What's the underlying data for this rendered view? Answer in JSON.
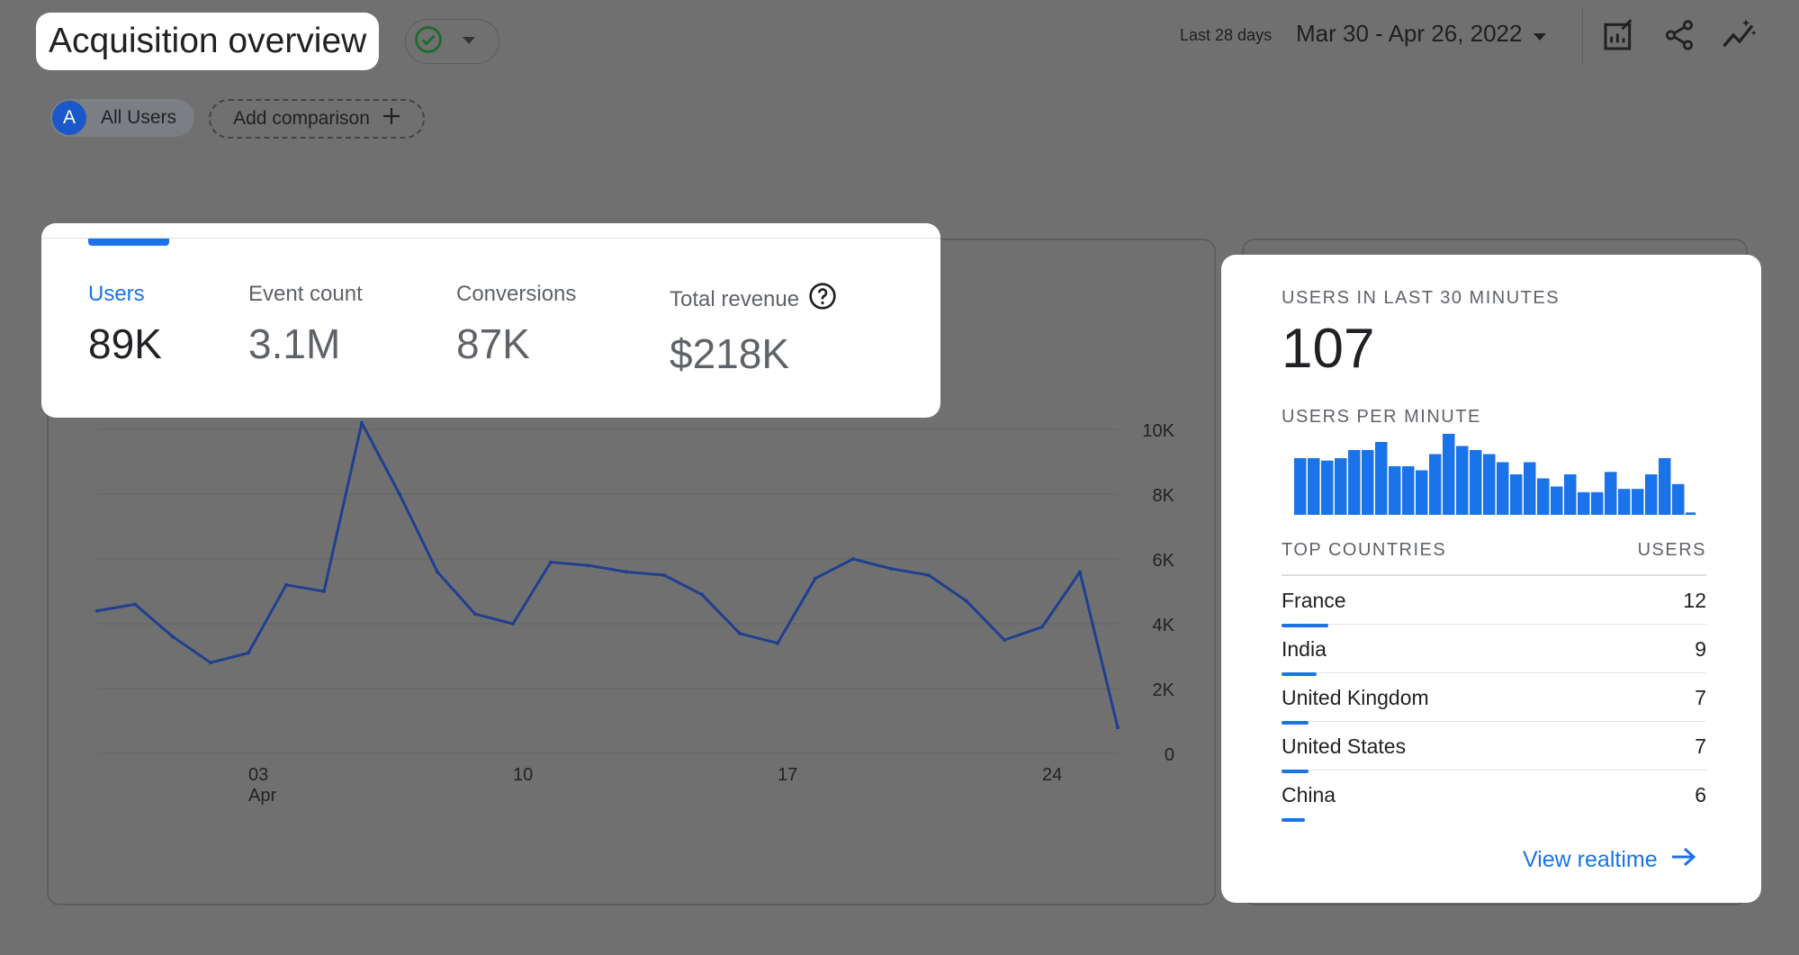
{
  "header": {
    "title": "Acquisition overview",
    "date_range_label": "Last 28 days",
    "date_range": "Mar 30 - Apr 26, 2022",
    "icons": [
      "check-circle-icon",
      "chevron-down-icon",
      "customize-report-icon",
      "share-icon",
      "insights-icon"
    ]
  },
  "comparisons": {
    "segment_avatar": "A",
    "segment_label": "All Users",
    "add_label": "Add comparison"
  },
  "metrics": [
    {
      "label": "Users",
      "value": "89K",
      "active": true
    },
    {
      "label": "Event count",
      "value": "3.1M"
    },
    {
      "label": "Conversions",
      "value": "87K"
    },
    {
      "label": "Total revenue",
      "value": "$218K",
      "help_icon": "help-circle-icon"
    }
  ],
  "chart_data": {
    "type": "line",
    "series": [
      {
        "values": [
          4400,
          4600,
          3600,
          2800,
          3100,
          5200,
          5000,
          10200,
          8000,
          5600,
          4300,
          4000,
          5900,
          5800,
          5600,
          5500,
          4900,
          3700,
          3400,
          5400,
          6000,
          5700,
          5500,
          4700,
          3500,
          3900,
          5600,
          800
        ]
      }
    ],
    "x": [
      "Mar 30",
      "Mar 31",
      "Apr 1",
      "Apr 2",
      "Apr 3",
      "Apr 4",
      "Apr 5",
      "Apr 6",
      "Apr 7",
      "Apr 8",
      "Apr 9",
      "Apr 10",
      "Apr 11",
      "Apr 12",
      "Apr 13",
      "Apr 14",
      "Apr 15",
      "Apr 16",
      "Apr 17",
      "Apr 18",
      "Apr 19",
      "Apr 20",
      "Apr 21",
      "Apr 22",
      "Apr 23",
      "Apr 24",
      "Apr 25",
      "Apr 26"
    ],
    "x_tick_labels": [
      {
        "at": "Apr 3",
        "label": "03",
        "sublabel": "Apr"
      },
      {
        "at": "Apr 10",
        "label": "10"
      },
      {
        "at": "Apr 17",
        "label": "17"
      },
      {
        "at": "Apr 24",
        "label": "24"
      }
    ],
    "y_ticks": [
      0,
      2000,
      4000,
      6000,
      8000,
      10000
    ],
    "y_tick_labels": [
      "0",
      "2K",
      "4K",
      "6K",
      "8K",
      "10K"
    ],
    "ylim": [
      0,
      10000
    ],
    "grid": true,
    "color": "#1f3f8f"
  },
  "realtime": {
    "users_heading": "USERS IN LAST 30 MINUTES",
    "users_count": "107",
    "per_minute_heading": "USERS PER MINUTE",
    "per_minute_values": [
      7,
      7,
      6.7,
      7,
      8,
      8,
      9,
      6,
      6,
      5.5,
      7.5,
      10,
      8.5,
      8,
      7.5,
      6.5,
      5,
      6.5,
      4.5,
      3.5,
      5,
      2.8,
      2.8,
      5.3,
      3.2,
      3.2,
      5,
      7,
      3.8,
      0.3
    ],
    "countries_heading": "TOP COUNTRIES",
    "users_col_heading": "USERS",
    "countries": [
      {
        "name": "France",
        "users": "12",
        "share": 1.0
      },
      {
        "name": "India",
        "users": "9",
        "share": 0.75
      },
      {
        "name": "United Kingdom",
        "users": "7",
        "share": 0.58
      },
      {
        "name": "United States",
        "users": "7",
        "share": 0.58
      },
      {
        "name": "China",
        "users": "6",
        "share": 0.5
      }
    ],
    "view_link": "View realtime",
    "view_link_icon": "arrow-right-icon"
  },
  "colors": {
    "accent": "#1a73e8",
    "line": "#1f3f8f",
    "bars": "#1a73e8",
    "backdrop": "#707070"
  }
}
